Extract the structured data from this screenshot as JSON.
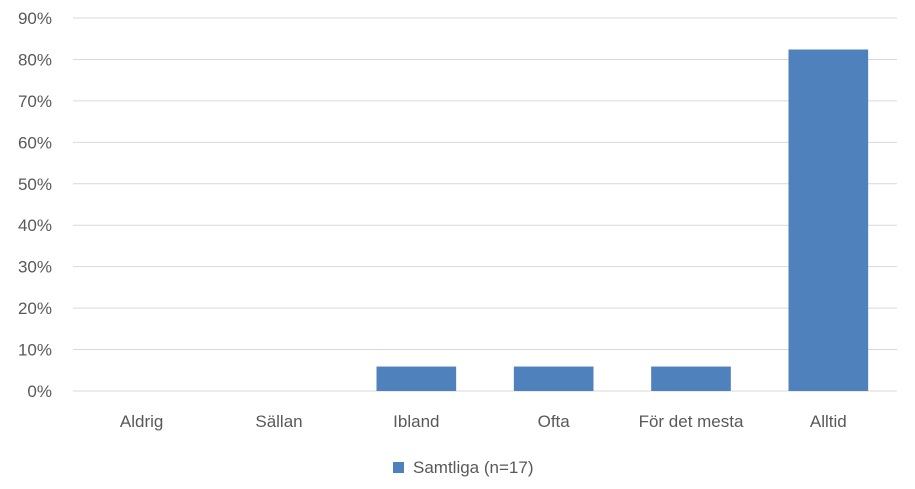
{
  "chart_data": {
    "type": "bar",
    "categories": [
      "Aldrig",
      "Sällan",
      "Ibland",
      "Ofta",
      "För det mesta",
      "Alltid"
    ],
    "series": [
      {
        "name": "Samtliga (n=17)",
        "values": [
          0,
          0,
          5.9,
          5.9,
          5.9,
          82.4
        ],
        "color": "#4f81bd"
      }
    ],
    "y_ticks": [
      "0%",
      "10%",
      "20%",
      "30%",
      "40%",
      "50%",
      "60%",
      "70%",
      "80%",
      "90%"
    ],
    "ylim": [
      0,
      90
    ],
    "grid": true,
    "legend_position": "bottom",
    "gridline_color": "#d9d9d9",
    "text_color": "#595959"
  }
}
